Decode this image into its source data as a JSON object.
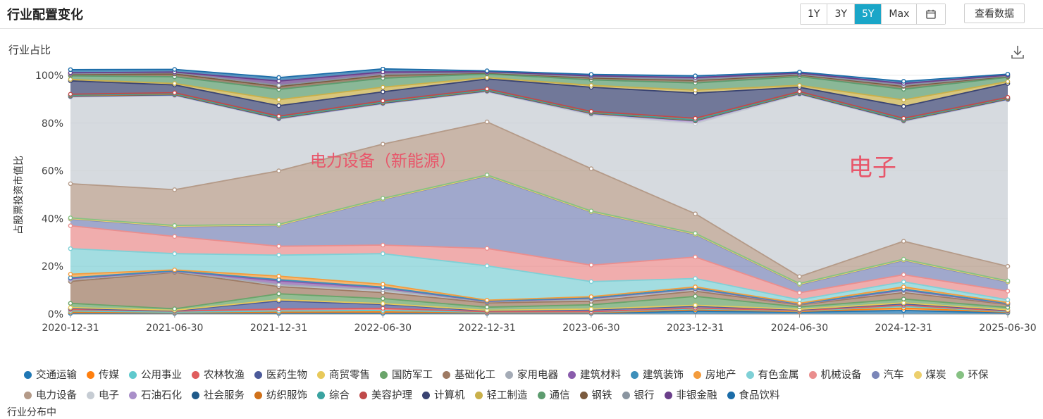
{
  "header": {
    "title": "行业配置变化",
    "ranges": [
      {
        "label": "1Y",
        "active": false
      },
      {
        "label": "3Y",
        "active": false
      },
      {
        "label": "5Y",
        "active": true
      },
      {
        "label": "Max",
        "active": false
      }
    ],
    "calendar_icon": "calendar-icon",
    "view_data_label": "查看数据"
  },
  "section": {
    "label": "行业占比",
    "download_icon": "download-icon"
  },
  "footer": {
    "cut_text": "行业分布中"
  },
  "chart_data": {
    "type": "area",
    "stacked": true,
    "ylabel": "占股票投资市值比",
    "ylim": [
      0,
      100
    ],
    "yticks": [
      "0%",
      "20%",
      "40%",
      "60%",
      "80%",
      "100%"
    ],
    "categories": [
      "2020-12-31",
      "2021-06-30",
      "2021-12-31",
      "2022-06-30",
      "2022-12-31",
      "2023-06-30",
      "2023-12-31",
      "2024-06-30",
      "2024-12-31",
      "2025-06-30"
    ],
    "annotations": [
      {
        "text": "电力设备（新能源）",
        "color": "#e8566a",
        "size": 23,
        "anchor_index": 3,
        "anchor_value": 62
      },
      {
        "text": "电子",
        "color": "#e8566a",
        "size": 34,
        "anchor_index": 7.7,
        "anchor_value": 58
      }
    ],
    "legend_position": "bottom",
    "series": [
      {
        "name": "交通运输",
        "color": "#1f77b4",
        "values": [
          0.3,
          0.3,
          0.3,
          0.3,
          0.3,
          0.3,
          1.2,
          0.8,
          1.5,
          0.5
        ]
      },
      {
        "name": "传媒",
        "color": "#ff7f0e",
        "values": [
          0.5,
          0.3,
          0.5,
          0.6,
          0.3,
          0.3,
          0.6,
          0.3,
          1.0,
          0.3
        ]
      },
      {
        "name": "公用事业",
        "color": "#5fc9cd",
        "values": [
          0.5,
          0.2,
          0.5,
          0.6,
          0.2,
          0.2,
          0.4,
          0.2,
          0.8,
          0.2
        ]
      },
      {
        "name": "农林牧渔",
        "color": "#e05d5d",
        "values": [
          0.6,
          0.4,
          0.8,
          0.9,
          0.2,
          0.2,
          0.3,
          0.2,
          0.4,
          0.3
        ]
      },
      {
        "name": "医药生物",
        "color": "#4b5a9a",
        "values": [
          0.5,
          0.2,
          3.4,
          1.6,
          0.4,
          0.8,
          0.8,
          0.3,
          0.6,
          0.3
        ]
      },
      {
        "name": "商贸零售",
        "color": "#e8c95a",
        "values": [
          0.3,
          0.2,
          0.5,
          0.4,
          0.2,
          0.3,
          0.4,
          0.2,
          0.4,
          0.2
        ]
      },
      {
        "name": "国防军工",
        "color": "#6aa46a",
        "values": [
          1.8,
          0.6,
          2.5,
          2.1,
          1.3,
          1.8,
          3.7,
          1.0,
          1.6,
          1.0
        ]
      },
      {
        "name": "基础化工",
        "color": "#9e7a63",
        "values": [
          9.2,
          15.3,
          3.0,
          2.5,
          1.8,
          1.5,
          2.2,
          0.9,
          2.7,
          1.2
        ]
      },
      {
        "name": "家用电器",
        "color": "#a4abb6",
        "values": [
          0.6,
          0.3,
          0.8,
          1.2,
          0.4,
          0.8,
          0.8,
          0.2,
          0.8,
          0.3
        ]
      },
      {
        "name": "建筑材料",
        "color": "#8a5cac",
        "values": [
          0.6,
          0.2,
          1.6,
          0.8,
          0.2,
          0.4,
          0.2,
          0.1,
          0.3,
          0.1
        ]
      },
      {
        "name": "建筑装饰",
        "color": "#3d8fba",
        "values": [
          0.3,
          0.2,
          0.5,
          0.3,
          0.2,
          0.2,
          0.2,
          0.1,
          0.3,
          0.1
        ]
      },
      {
        "name": "房地产",
        "color": "#f39c3d",
        "values": [
          1.5,
          0.3,
          1.5,
          1.2,
          0.3,
          0.5,
          0.6,
          0.2,
          1.0,
          0.3
        ]
      },
      {
        "name": "有色金属",
        "color": "#7fd0d6",
        "values": [
          10.7,
          6.8,
          8.8,
          12.8,
          14.4,
          6.3,
          3.5,
          1.5,
          2.1,
          1.2
        ]
      },
      {
        "name": "机械设备",
        "color": "#ea8e8e",
        "values": [
          9.6,
          7.2,
          3.7,
          3.6,
          7.3,
          6.9,
          9.0,
          2.9,
          3.0,
          3.6
        ]
      },
      {
        "name": "汽车",
        "color": "#7b86b8",
        "values": [
          2.8,
          4.1,
          8.7,
          19.1,
          30.3,
          22.2,
          9.4,
          3.4,
          6.0,
          3.8
        ]
      },
      {
        "name": "煤炭",
        "color": "#eccf6c",
        "values": [
          0.2,
          0.2,
          0.2,
          0.2,
          0.2,
          0.2,
          0.2,
          0.2,
          0.2,
          0.2
        ]
      },
      {
        "name": "环保",
        "color": "#86c183",
        "values": [
          0.3,
          0.3,
          0.3,
          0.3,
          0.3,
          0.3,
          0.3,
          0.3,
          0.3,
          0.3
        ]
      },
      {
        "name": "电力设备",
        "color": "#b49a88",
        "values": [
          14.3,
          15.0,
          22.4,
          22.7,
          22.2,
          17.7,
          8.2,
          2.9,
          7.5,
          6.1
        ]
      },
      {
        "name": "电子",
        "color": "#c6ccd3",
        "values": [
          36.3,
          39.4,
          21.6,
          16.8,
          12.6,
          22.5,
          37.8,
          76.3,
          50.1,
          69.7
        ]
      },
      {
        "name": "石油石化",
        "color": "#a98fc9",
        "values": [
          0.2,
          0.2,
          0.2,
          0.2,
          0.2,
          0.5,
          1.0,
          0.2,
          0.3,
          0.2
        ]
      },
      {
        "name": "社会服务",
        "color": "#1f5a8a",
        "values": [
          0.2,
          0.2,
          0.2,
          0.2,
          0.2,
          0.2,
          0.2,
          0.2,
          0.2,
          0.2
        ]
      },
      {
        "name": "纺织服饰",
        "color": "#d0711a",
        "values": [
          0.2,
          0.2,
          0.2,
          0.2,
          0.2,
          0.2,
          0.2,
          0.2,
          0.2,
          0.2
        ]
      },
      {
        "name": "综合",
        "color": "#3aa3a0",
        "values": [
          0.2,
          0.2,
          0.2,
          0.2,
          0.2,
          0.2,
          0.2,
          0.2,
          0.2,
          0.2
        ]
      },
      {
        "name": "美容护理",
        "color": "#c04a4a",
        "values": [
          0.4,
          0.4,
          0.5,
          0.5,
          0.4,
          0.4,
          0.6,
          0.4,
          0.5,
          0.3
        ]
      },
      {
        "name": "计算机",
        "color": "#3a4472",
        "values": [
          5.6,
          3.3,
          4.4,
          3.8,
          4.2,
          10.1,
          10.6,
          1.8,
          5.0,
          5.8
        ]
      },
      {
        "name": "轻工制造",
        "color": "#c9b04a",
        "values": [
          0.6,
          0.6,
          2.5,
          1.9,
          0.6,
          0.8,
          1.2,
          0.8,
          2.7,
          0.8
        ]
      },
      {
        "name": "通信",
        "color": "#5d9c6f",
        "values": [
          1.5,
          2.8,
          4.3,
          3.8,
          1.5,
          2.3,
          3.0,
          3.7,
          4.5,
          1.8
        ]
      },
      {
        "name": "钢铁",
        "color": "#7a5a3e",
        "values": [
          0.6,
          1.2,
          1.2,
          1.2,
          0.4,
          0.8,
          1.1,
          0.7,
          1.2,
          0.4
        ]
      },
      {
        "name": "银行",
        "color": "#8a95a0",
        "values": [
          0.3,
          0.5,
          0.5,
          0.4,
          0.2,
          0.4,
          0.4,
          0.3,
          0.4,
          0.2
        ]
      },
      {
        "name": "非银金融",
        "color": "#6a3e8a",
        "values": [
          0.4,
          0.3,
          1.8,
          1.0,
          0.3,
          0.5,
          0.8,
          0.4,
          0.8,
          0.3
        ]
      },
      {
        "name": "食品饮料",
        "color": "#1b6ca8",
        "values": [
          1.3,
          1.1,
          1.5,
          1.3,
          0.4,
          0.6,
          0.7,
          0.5,
          0.9,
          0.4
        ]
      }
    ]
  }
}
